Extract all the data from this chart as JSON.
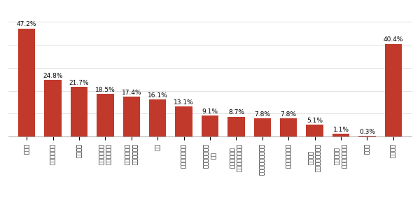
{
  "categories": [
    "飲料水",
    "レトルト食品",
    "カップ麺",
    "非常用の食料\n（乾パン等）",
    "ビスケットや\nクッキーなど",
    "生米",
    "水以外の飲み物",
    "カップ麺以外の\n麺類",
    "ごはん（米を\n炊いてあるもの）",
    "長期保存可能なパン",
    "その他のお菓子",
    "その他の\nインスタント食品",
    "その他長期\n保存可能な食料",
    "その他",
    "特になし"
  ],
  "values": [
    47.2,
    24.8,
    21.7,
    18.5,
    17.4,
    16.1,
    13.1,
    9.1,
    8.7,
    7.8,
    7.8,
    5.1,
    1.1,
    0.3,
    40.4
  ],
  "bar_color": "#c0392b",
  "background_color": "#ffffff",
  "ylim": [
    0,
    55
  ],
  "label_fontsize": 6.0,
  "value_fontsize": 6.5
}
